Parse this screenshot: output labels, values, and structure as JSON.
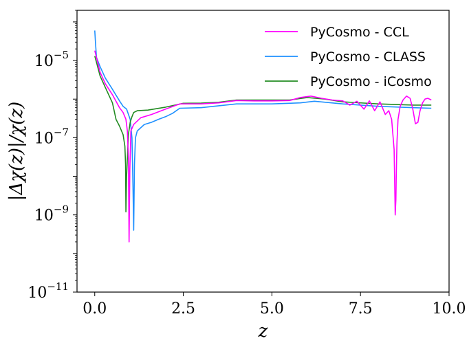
{
  "chart_data": {
    "type": "line",
    "xlabel": "z",
    "ylabel": "|Δχ(z)|/χ(z)",
    "xlim": [
      -0.5,
      10.0
    ],
    "ylim": [
      1e-11,
      0.0002
    ],
    "yscale": "log",
    "grid": false,
    "legend_position": "top-right",
    "x_ticks": [
      0.0,
      2.5,
      5.0,
      7.5,
      10.0
    ],
    "x_tick_labels": [
      "0.0",
      "2.5",
      "5.0",
      "7.5",
      "10.0"
    ],
    "y_ticks": [
      1e-11,
      1e-09,
      1e-07,
      1e-05
    ],
    "y_tick_labels": [
      {
        "base": "10",
        "exp": "−11"
      },
      {
        "base": "10",
        "exp": "−9"
      },
      {
        "base": "10",
        "exp": "−7"
      },
      {
        "base": "10",
        "exp": "−5"
      }
    ],
    "series": [
      {
        "name": "PyCosmo - CCL",
        "color": "#ff00ff",
        "x": [
          0.0,
          0.05,
          0.15,
          0.3,
          0.5,
          0.7,
          0.8,
          0.88,
          0.92,
          0.95,
          0.97,
          0.99,
          1.02,
          1.1,
          1.3,
          1.6,
          2.0,
          2.4,
          3.0,
          3.5,
          4.0,
          4.5,
          5.0,
          5.5,
          5.8,
          6.1,
          6.4,
          6.7,
          7.0,
          7.2,
          7.4,
          7.6,
          7.75,
          7.9,
          8.05,
          8.2,
          8.3,
          8.38,
          8.45,
          8.48,
          8.5,
          8.51,
          8.53,
          8.56,
          8.62,
          8.7,
          8.8,
          8.9,
          8.97,
          9.05,
          9.12,
          9.18,
          9.25,
          9.32,
          9.4,
          9.5
        ],
        "values": [
          1.8e-05,
          1.2e-05,
          5e-06,
          2.5e-06,
          1.3e-06,
          6e-07,
          4.5e-07,
          3e-07,
          1.5e-07,
          3e-08,
          2e-10,
          1.5e-08,
          1.5e-07,
          2.2e-07,
          3.3e-07,
          4e-07,
          5.5e-07,
          7.5e-07,
          7.5e-07,
          8e-07,
          9.2e-07,
          9e-07,
          9e-07,
          9.2e-07,
          1.1e-06,
          1.2e-06,
          1.05e-06,
          9.5e-07,
          9e-07,
          7e-07,
          8.8e-07,
          5.5e-07,
          9e-07,
          5e-07,
          8.5e-07,
          4e-07,
          5e-07,
          3e-07,
          5e-08,
          1e-09,
          2.5e-09,
          1e-08,
          8e-08,
          3e-07,
          6.5e-07,
          9.5e-07,
          1.2e-06,
          1.05e-06,
          6e-07,
          2.3e-07,
          2.5e-07,
          5e-07,
          8e-07,
          1e-06,
          1.05e-06,
          9.5e-07
        ]
      },
      {
        "name": "PyCosmo - CLASS",
        "color": "#1e90ff",
        "x": [
          0.0,
          0.02,
          0.05,
          0.15,
          0.3,
          0.5,
          0.7,
          0.8,
          0.9,
          1.0,
          1.05,
          1.08,
          1.1,
          1.12,
          1.15,
          1.2,
          1.4,
          1.6,
          1.8,
          2.0,
          2.2,
          2.4,
          3.0,
          4.0,
          5.0,
          5.8,
          6.2,
          7.0,
          8.0,
          9.0,
          9.5
        ],
        "values": [
          6e-05,
          3e-05,
          1.2e-05,
          7e-06,
          3.5e-06,
          1.8e-06,
          9e-07,
          6.5e-07,
          5.5e-07,
          3e-07,
          1e-07,
          5e-09,
          4e-10,
          2e-08,
          1e-07,
          1.5e-07,
          2.2e-07,
          2.5e-07,
          3e-07,
          3.5e-07,
          4.3e-07,
          5.8e-07,
          6e-07,
          7.5e-07,
          7.5e-07,
          8e-07,
          8.8e-07,
          7.5e-07,
          6.5e-07,
          6e-07,
          5.8e-07
        ]
      },
      {
        "name": "PyCosmo - iCosmo",
        "color": "#228b22",
        "x": [
          0.0,
          0.05,
          0.15,
          0.3,
          0.5,
          0.6,
          0.7,
          0.8,
          0.85,
          0.87,
          0.88,
          0.9,
          0.95,
          1.0,
          1.05,
          1.1,
          1.2,
          1.5,
          2.0,
          2.5,
          3.0,
          3.5,
          4.0,
          5.0,
          5.5,
          6.0,
          6.5,
          7.0,
          8.0,
          9.0,
          9.5
        ],
        "values": [
          1.3e-05,
          9e-06,
          4e-06,
          2e-06,
          8e-07,
          3e-07,
          2e-07,
          1.2e-07,
          6e-08,
          2e-08,
          1.2e-09,
          1e-08,
          1.2e-07,
          2.5e-07,
          3.5e-07,
          4.5e-07,
          5e-07,
          5.2e-07,
          6.2e-07,
          7.8e-07,
          7.9e-07,
          8.3e-07,
          9.5e-07,
          9.5e-07,
          9.5e-07,
          1.1e-06,
          1e-06,
          8.5e-07,
          7.5e-07,
          7e-07,
          7e-07
        ]
      }
    ]
  }
}
